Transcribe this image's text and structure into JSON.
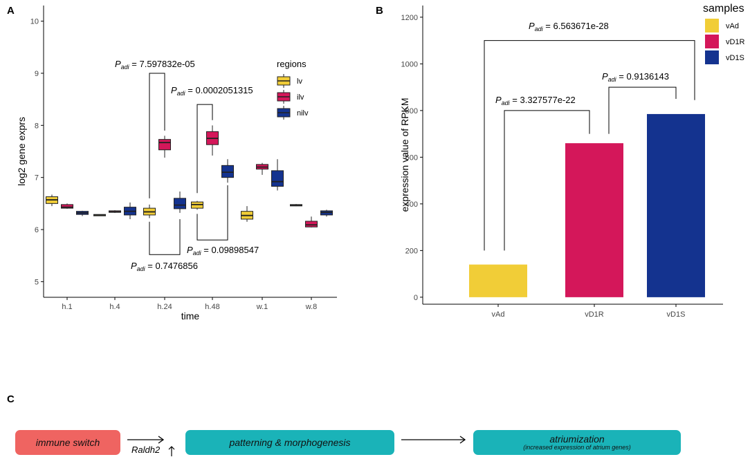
{
  "panels": {
    "a": "A",
    "b": "B",
    "c": "C"
  },
  "annotation_sub": "adi",
  "colors": {
    "yellow": "#f1cd37",
    "pink": "#d4175a",
    "blue": "#14338f",
    "red_box": "#ef6461",
    "teal_box": "#1ab3b8"
  },
  "chart_data": [
    {
      "type": "boxplot",
      "panel": "A",
      "xlabel": "time",
      "ylabel": "log2 gene exprs",
      "categories": [
        "h.1",
        "h.4",
        "h.24",
        "h.48",
        "w.1",
        "w.8"
      ],
      "yticks": [
        "5",
        "6",
        "7",
        "8",
        "9",
        "10"
      ],
      "ylim": [
        4.7,
        10.3
      ],
      "legend": {
        "title": "regions",
        "position": "top-right"
      },
      "series": [
        {
          "name": "lv",
          "color": "#f1cd37",
          "boxes": [
            {
              "min": 6.45,
              "q1": 6.5,
              "med": 6.57,
              "q3": 6.63,
              "max": 6.67
            },
            {
              "min": 6.27,
              "q1": 6.27,
              "med": 6.28,
              "q3": 6.29,
              "max": 6.29
            },
            {
              "min": 6.22,
              "q1": 6.28,
              "med": 6.34,
              "q3": 6.41,
              "max": 6.48
            },
            {
              "min": 6.38,
              "q1": 6.41,
              "med": 6.48,
              "q3": 6.53,
              "max": 6.55
            },
            {
              "min": 6.15,
              "q1": 6.2,
              "med": 6.27,
              "q3": 6.35,
              "max": 6.45
            },
            {
              "min": 6.45,
              "q1": 6.46,
              "med": 6.47,
              "q3": 6.48,
              "max": 6.49
            }
          ]
        },
        {
          "name": "ilv",
          "color": "#d4175a",
          "boxes": [
            {
              "min": 6.4,
              "q1": 6.41,
              "med": 6.43,
              "q3": 6.48,
              "max": 6.5
            },
            {
              "min": 6.32,
              "q1": 6.33,
              "med": 6.34,
              "q3": 6.36,
              "max": 6.37
            },
            {
              "min": 7.38,
              "q1": 7.53,
              "med": 7.67,
              "q3": 7.73,
              "max": 7.8
            },
            {
              "min": 7.42,
              "q1": 7.63,
              "med": 7.75,
              "q3": 7.88,
              "max": 8.0
            },
            {
              "min": 7.05,
              "q1": 7.16,
              "med": 7.2,
              "q3": 7.25,
              "max": 7.28
            },
            {
              "min": 6.04,
              "q1": 6.05,
              "med": 6.09,
              "q3": 6.16,
              "max": 6.25
            }
          ]
        },
        {
          "name": "nilv",
          "color": "#14338f",
          "boxes": [
            {
              "min": 6.26,
              "q1": 6.29,
              "med": 6.32,
              "q3": 6.35,
              "max": 6.36
            },
            {
              "min": 6.2,
              "q1": 6.28,
              "med": 6.35,
              "q3": 6.43,
              "max": 6.52
            },
            {
              "min": 6.32,
              "q1": 6.4,
              "med": 6.47,
              "q3": 6.6,
              "max": 6.73
            },
            {
              "min": 6.9,
              "q1": 7.0,
              "med": 7.1,
              "q3": 7.23,
              "max": 7.35
            },
            {
              "min": 6.75,
              "q1": 6.83,
              "med": 6.92,
              "q3": 7.13,
              "max": 7.35
            },
            {
              "min": 6.25,
              "q1": 6.28,
              "med": 6.33,
              "q3": 6.36,
              "max": 6.38
            }
          ]
        }
      ],
      "annotations": [
        {
          "text": " = 7.597832e-05",
          "between": [
            "h.24 lv",
            "h.24 ilv"
          ],
          "y": 9.0
        },
        {
          "text": " = 0.0002051315",
          "between": [
            "h.48 lv",
            "h.48 ilv"
          ],
          "y": 8.4
        },
        {
          "text": " = 0.7476856",
          "between": [
            "h.24 lv",
            "h.24 nilv"
          ],
          "y": 5.52
        },
        {
          "text": " = 0.09898547",
          "between": [
            "h.48 lv",
            "h.48 nilv"
          ],
          "y": 5.8
        }
      ]
    },
    {
      "type": "bar",
      "panel": "B",
      "ylabel": "expression value of RPKM",
      "categories": [
        "vAd",
        "vD1R",
        "vD1S"
      ],
      "values": [
        140,
        660,
        785
      ],
      "yticks": [
        "0",
        "200",
        "400",
        "600",
        "800",
        "1000",
        "1200"
      ],
      "ylim": [
        -30,
        1250
      ],
      "legend": {
        "title": "samples",
        "position": "top-right"
      },
      "annotations": [
        {
          "text": " = 6.563671e-28",
          "between": [
            "vAd",
            "vD1S"
          ],
          "y": 1100
        },
        {
          "text": " = 3.327577e-22",
          "between": [
            "vAd",
            "vD1R"
          ],
          "y": 800
        },
        {
          "text": " = 0.9136143",
          "between": [
            "vD1R",
            "vD1S"
          ],
          "y": 900
        }
      ]
    }
  ],
  "flow": {
    "box1": "immune switch",
    "box2": "patterning & morphogenesis",
    "box3_title": "atriumization",
    "box3_sub": "(increased expression of atrium genes)",
    "gene": "Raldh2"
  }
}
